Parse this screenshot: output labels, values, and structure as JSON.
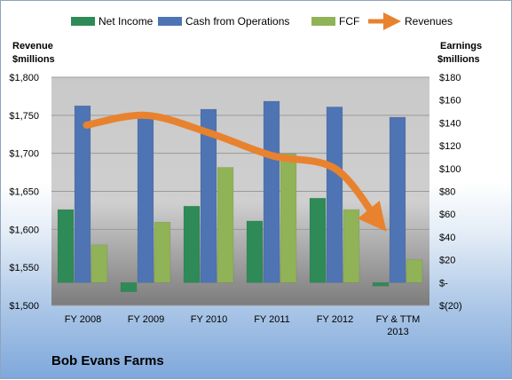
{
  "chart_data": {
    "type": "bar",
    "title": "Bob Evans Farms",
    "categories": [
      "FY 2008",
      "FY 2009",
      "FY 2010",
      "FY 2011",
      "FY 2012",
      "FY & TTM 2013"
    ],
    "series": [
      {
        "name": "Net Income",
        "axis": "right",
        "kind": "bar",
        "color": "#2e8b57",
        "values": [
          64,
          -8,
          67,
          54,
          74,
          -3
        ]
      },
      {
        "name": "Cash from Operations",
        "axis": "right",
        "kind": "bar",
        "color": "#4f74b3",
        "values": [
          155,
          147,
          152,
          159,
          154,
          145
        ]
      },
      {
        "name": "FCF",
        "axis": "right",
        "kind": "bar",
        "color": "#90b357",
        "values": [
          33,
          53,
          101,
          113,
          64,
          20
        ]
      },
      {
        "name": "Revenues",
        "axis": "left",
        "kind": "line",
        "color": "#e8822e",
        "values": [
          1737,
          1750,
          1727,
          1697,
          1680,
          1610
        ]
      }
    ],
    "left_axis": {
      "title_line1": "Revenue",
      "title_line2": "$millions",
      "range": [
        1500,
        1800
      ],
      "ticks": [
        "$1,500",
        "$1,550",
        "$1,600",
        "$1,650",
        "$1,700",
        "$1,750",
        "$1,800"
      ]
    },
    "right_axis": {
      "title_line1": "Earnings",
      "title_line2": "$millions",
      "range": [
        -20,
        180
      ],
      "ticks": [
        "$(20)",
        "$-",
        "$20",
        "$40",
        "$60",
        "$80",
        "$100",
        "$120",
        "$140",
        "$160",
        "$180"
      ]
    },
    "x_tick_labels": [
      [
        "FY 2008"
      ],
      [
        "FY 2009"
      ],
      [
        "FY 2010"
      ],
      [
        "FY 2011"
      ],
      [
        "FY 2012"
      ],
      [
        "FY & TTM",
        "2013"
      ]
    ],
    "legend_placement": "top",
    "grid": true
  }
}
